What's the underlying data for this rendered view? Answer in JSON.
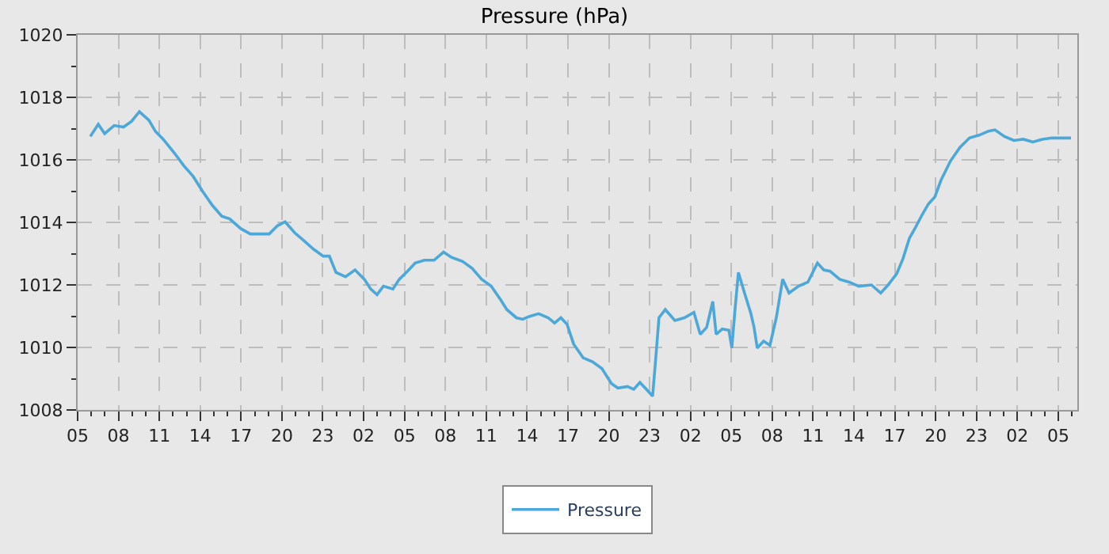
{
  "chart_data": {
    "type": "line",
    "title": "Pressure (hPa)",
    "x": [
      "--01-01T05:56",
      "--01-01T06:31",
      "--01-01T06:59",
      "--01-01T07:41",
      "--01-01T08:22",
      "--01-01T08:57",
      "--01-01T09:32",
      "--01-01T10:14",
      "--01-01T10:42",
      "--01-01T11:17",
      "--01-01T12:06",
      "--01-01T12:47",
      "--01-01T13:29",
      "--01-01T14:11",
      "--01-01T14:53",
      "--01-01T15:35",
      "--01-01T16:10",
      "--01-01T16:59",
      "--01-01T17:41",
      "--01-01T18:23",
      "--01-01T19:04",
      "--01-01T19:40",
      "--01-01T20:14",
      "--01-01T20:56",
      "--01-01T21:38",
      "--01-01T22:20",
      "--01-01T23:02",
      "--01-01T23:29",
      "--01-01T23:58",
      "--01-02T00:40",
      "--01-02T01:22",
      "--01-02T02:03",
      "--01-02T02:31",
      "--01-02T02:59",
      "--01-02T03:27",
      "--01-02T04:09",
      "--01-02T04:37",
      "--01-02T05:19",
      "--01-02T05:47",
      "--01-02T06:28",
      "--01-02T07:10",
      "--01-02T07:52",
      "--01-02T08:27",
      "--01-02T09:16",
      "--01-02T09:58",
      "--01-02T10:40",
      "--01-02T11:22",
      "--01-02T12:04",
      "--01-02T12:31",
      "--01-02T13:13",
      "--01-02T13:41",
      "--01-02T14:09",
      "--01-02T14:51",
      "--01-02T15:33",
      "--01-02T16:01",
      "--01-02T16:29",
      "--01-02T16:56",
      "--01-02T17:25",
      "--01-02T18:07",
      "--01-02T18:48",
      "--01-02T19:30",
      "--01-02T20:12",
      "--01-02T20:40",
      "--01-02T21:22",
      "--01-02T21:50",
      "--01-02T22:17",
      "--01-02T22:46",
      "--01-02T23:13",
      "--01-02T23:28",
      "--01-02T23:41",
      "--01-03T00:09",
      "--01-03T00:51",
      "--01-03T01:33",
      "--01-03T02:15",
      "--01-03T02:43",
      "--01-03T03:11",
      "--01-03T03:38",
      "--01-03T03:53",
      "--01-03T04:20",
      "--01-03T04:49",
      "--01-03T05:02",
      "--01-03T05:16",
      "--01-03T05:31",
      "--01-03T05:58",
      "--01-03T06:26",
      "--01-03T06:40",
      "--01-03T06:54",
      "--01-03T07:22",
      "--01-03T07:50",
      "--01-03T08:18",
      "--01-03T08:46",
      "--01-03T09:14",
      "--01-03T09:56",
      "--01-03T10:37",
      "--01-03T11:19",
      "--01-03T11:47",
      "--01-03T12:15",
      "--01-03T12:57",
      "--01-03T13:39",
      "--01-03T14:21",
      "--01-03T15:17",
      "--01-03T15:58",
      "--01-03T16:26",
      "--01-03T17:08",
      "--01-03T17:36",
      "--01-03T18:04",
      "--01-03T18:32",
      "--01-03T19:00",
      "--01-03T19:28",
      "--01-03T19:56",
      "--01-03T20:23",
      "--01-03T21:05",
      "--01-03T21:47",
      "--01-03T22:29",
      "--01-03T23:11",
      "--01-03T23:53",
      "--01-04T00:21",
      "--01-04T01:03",
      "--01-04T01:44",
      "--01-04T02:26",
      "--01-04T03:08",
      "--01-04T03:50",
      "--01-04T04:32",
      "--01-04T05:14",
      "--01-04T05:56"
    ],
    "series": [
      {
        "name": "Pressure",
        "color": "#4ba8d8",
        "values": [
          1016.75,
          1017.14,
          1016.84,
          1017.1,
          1017.05,
          1017.23,
          1017.54,
          1017.27,
          1016.92,
          1016.66,
          1016.22,
          1015.82,
          1015.47,
          1014.99,
          1014.55,
          1014.2,
          1014.11,
          1013.8,
          1013.63,
          1013.63,
          1013.63,
          1013.89,
          1014.02,
          1013.67,
          1013.41,
          1013.14,
          1012.92,
          1012.92,
          1012.4,
          1012.26,
          1012.48,
          1012.18,
          1011.87,
          1011.69,
          1011.96,
          1011.87,
          1012.18,
          1012.48,
          1012.7,
          1012.79,
          1012.79,
          1013.05,
          1012.88,
          1012.75,
          1012.53,
          1012.18,
          1011.96,
          1011.52,
          1011.21,
          1010.95,
          1010.9,
          1010.99,
          1011.08,
          1010.95,
          1010.78,
          1010.95,
          1010.74,
          1010.11,
          1009.67,
          1009.54,
          1009.32,
          1008.84,
          1008.7,
          1008.75,
          1008.66,
          1008.88,
          1008.66,
          1008.44,
          1009.76,
          1010.95,
          1011.21,
          1010.86,
          1010.95,
          1011.12,
          1010.42,
          1010.64,
          1011.47,
          1010.42,
          1010.59,
          1010.55,
          1009.98,
          1011.21,
          1012.4,
          1011.74,
          1011.08,
          1010.64,
          1009.98,
          1010.2,
          1010.07,
          1010.95,
          1012.18,
          1011.74,
          1011.96,
          1012.09,
          1012.7,
          1012.48,
          1012.44,
          1012.18,
          1012.09,
          1011.96,
          1012.0,
          1011.74,
          1011.96,
          1012.35,
          1012.84,
          1013.49,
          1013.85,
          1014.24,
          1014.59,
          1014.81,
          1015.34,
          1015.96,
          1016.4,
          1016.7,
          1016.79,
          1016.92,
          1016.96,
          1016.75,
          1016.62,
          1016.66,
          1016.57,
          1016.66,
          1016.7,
          1016.7,
          1016.7
        ]
      }
    ],
    "xlim": [
      "--01-01T05:00",
      "--01-04T06:24"
    ],
    "xticks": [
      {
        "value": "--01-01T05:00",
        "label": "05"
      },
      {
        "value": "--01-01T06:00",
        "label": null
      },
      {
        "value": "--01-01T07:00",
        "label": null
      },
      {
        "value": "--01-01T08:00",
        "label": "08"
      },
      {
        "value": "--01-01T09:00",
        "label": null
      },
      {
        "value": "--01-01T10:00",
        "label": null
      },
      {
        "value": "--01-01T11:00",
        "label": "11"
      },
      {
        "value": "--01-01T12:00",
        "label": null
      },
      {
        "value": "--01-01T13:00",
        "label": null
      },
      {
        "value": "--01-01T14:00",
        "label": "14"
      },
      {
        "value": "--01-01T15:00",
        "label": null
      },
      {
        "value": "--01-01T16:00",
        "label": null
      },
      {
        "value": "--01-01T17:00",
        "label": "17"
      },
      {
        "value": "--01-01T18:00",
        "label": null
      },
      {
        "value": "--01-01T19:00",
        "label": null
      },
      {
        "value": "--01-01T20:00",
        "label": "20"
      },
      {
        "value": "--01-01T21:00",
        "label": null
      },
      {
        "value": "--01-01T22:00",
        "label": null
      },
      {
        "value": "--01-01T23:00",
        "label": "23"
      },
      {
        "value": "--01-02T00:00",
        "label": null
      },
      {
        "value": "--01-02T01:00",
        "label": null
      },
      {
        "value": "--01-02T02:00",
        "label": "02"
      },
      {
        "value": "--01-02T03:00",
        "label": null
      },
      {
        "value": "--01-02T04:00",
        "label": null
      },
      {
        "value": "--01-02T05:00",
        "label": "05"
      },
      {
        "value": "--01-02T06:00",
        "label": null
      },
      {
        "value": "--01-02T07:00",
        "label": null
      },
      {
        "value": "--01-02T08:00",
        "label": "08"
      },
      {
        "value": "--01-02T09:00",
        "label": null
      },
      {
        "value": "--01-02T10:00",
        "label": null
      },
      {
        "value": "--01-02T11:00",
        "label": "11"
      },
      {
        "value": "--01-02T12:00",
        "label": null
      },
      {
        "value": "--01-02T13:00",
        "label": null
      },
      {
        "value": "--01-02T14:00",
        "label": "14"
      },
      {
        "value": "--01-02T15:00",
        "label": null
      },
      {
        "value": "--01-02T16:00",
        "label": null
      },
      {
        "value": "--01-02T17:00",
        "label": "17"
      },
      {
        "value": "--01-02T18:00",
        "label": null
      },
      {
        "value": "--01-02T19:00",
        "label": null
      },
      {
        "value": "--01-02T20:00",
        "label": "20"
      },
      {
        "value": "--01-02T21:00",
        "label": null
      },
      {
        "value": "--01-02T22:00",
        "label": null
      },
      {
        "value": "--01-02T23:00",
        "label": "23"
      },
      {
        "value": "--01-03T00:00",
        "label": null
      },
      {
        "value": "--01-03T01:00",
        "label": null
      },
      {
        "value": "--01-03T02:00",
        "label": "02"
      },
      {
        "value": "--01-03T03:00",
        "label": null
      },
      {
        "value": "--01-03T04:00",
        "label": null
      },
      {
        "value": "--01-03T05:00",
        "label": "05"
      },
      {
        "value": "--01-03T06:00",
        "label": null
      },
      {
        "value": "--01-03T07:00",
        "label": null
      },
      {
        "value": "--01-03T08:00",
        "label": "08"
      },
      {
        "value": "--01-03T09:00",
        "label": null
      },
      {
        "value": "--01-03T10:00",
        "label": null
      },
      {
        "value": "--01-03T11:00",
        "label": "11"
      },
      {
        "value": "--01-03T12:00",
        "label": null
      },
      {
        "value": "--01-03T13:00",
        "label": null
      },
      {
        "value": "--01-03T14:00",
        "label": "14"
      },
      {
        "value": "--01-03T15:00",
        "label": null
      },
      {
        "value": "--01-03T16:00",
        "label": null
      },
      {
        "value": "--01-03T17:00",
        "label": "17"
      },
      {
        "value": "--01-03T18:00",
        "label": null
      },
      {
        "value": "--01-03T19:00",
        "label": null
      },
      {
        "value": "--01-03T20:00",
        "label": "20"
      },
      {
        "value": "--01-03T21:00",
        "label": null
      },
      {
        "value": "--01-03T22:00",
        "label": null
      },
      {
        "value": "--01-03T23:00",
        "label": "23"
      },
      {
        "value": "--01-04T00:00",
        "label": null
      },
      {
        "value": "--01-04T01:00",
        "label": null
      },
      {
        "value": "--01-04T02:00",
        "label": "02"
      },
      {
        "value": "--01-04T03:00",
        "label": null
      },
      {
        "value": "--01-04T04:00",
        "label": null
      },
      {
        "value": "--01-04T05:00",
        "label": "05"
      },
      {
        "value": "--01-04T06:00",
        "label": null
      }
    ],
    "ylim": [
      1008,
      1020
    ],
    "yticks": [
      1008,
      {
        "value": 1009,
        "label": null
      },
      1010,
      {
        "value": 1011,
        "label": null
      },
      1012,
      {
        "value": 1013,
        "label": null
      },
      1014,
      {
        "value": 1015,
        "label": null
      },
      1016,
      {
        "value": 1017,
        "label": null
      },
      1018,
      {
        "value": 1019,
        "label": null
      },
      1020
    ],
    "grid": true,
    "legend": "bottom",
    "marker": "none",
    "line_style": "solid"
  }
}
